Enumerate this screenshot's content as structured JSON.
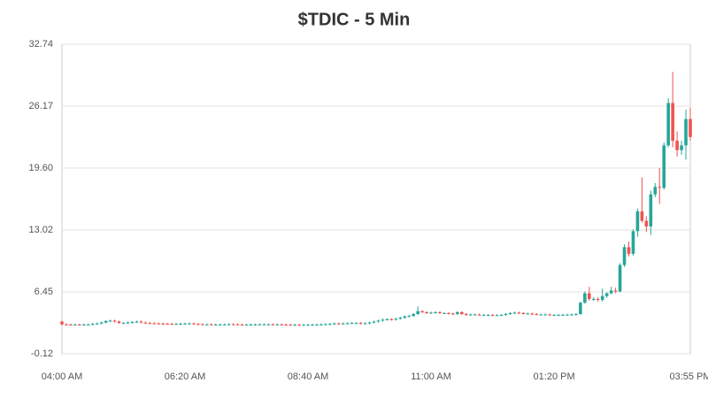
{
  "chart_data": {
    "type": "candlestick",
    "title": "$TDIC - 5 Min",
    "categories": [
      "04:00 AM",
      null,
      null,
      null,
      null,
      null,
      null,
      null,
      null,
      null,
      null,
      null,
      null,
      null,
      null,
      null,
      null,
      null,
      null,
      null,
      null,
      null,
      null,
      null,
      null,
      null,
      null,
      null,
      "06:20 AM",
      null,
      null,
      null,
      null,
      null,
      null,
      null,
      null,
      null,
      null,
      null,
      null,
      null,
      null,
      null,
      null,
      null,
      null,
      null,
      null,
      null,
      null,
      null,
      null,
      null,
      null,
      null,
      "08:40 AM",
      null,
      null,
      null,
      null,
      null,
      null,
      null,
      null,
      null,
      null,
      null,
      null,
      null,
      null,
      null,
      null,
      null,
      null,
      null,
      null,
      null,
      null,
      null,
      null,
      null,
      null,
      null,
      "11:00 AM",
      null,
      null,
      null,
      null,
      null,
      null,
      null,
      null,
      null,
      null,
      null,
      null,
      null,
      null,
      null,
      null,
      null,
      null,
      null,
      null,
      null,
      null,
      null,
      null,
      null,
      null,
      null,
      "01:20 PM",
      null,
      null,
      null,
      null,
      null,
      null,
      null,
      null,
      null,
      null,
      null,
      null,
      null,
      null,
      null,
      null,
      null,
      null,
      null,
      null,
      null,
      null,
      null,
      null,
      null,
      null,
      null,
      null,
      null,
      null,
      "03:55 PM"
    ],
    "open": [
      3.3,
      3.0,
      2.98,
      2.97,
      2.98,
      2.97,
      2.99,
      2.99,
      3.05,
      3.1,
      3.2,
      3.35,
      3.4,
      3.3,
      3.15,
      3.15,
      3.2,
      3.25,
      3.3,
      3.2,
      3.15,
      3.12,
      3.1,
      3.08,
      3.07,
      3.06,
      3.05,
      3.05,
      3.07,
      3.08,
      3.1,
      3.05,
      3.02,
      3.0,
      3.0,
      2.98,
      2.98,
      2.99,
      3.0,
      3.02,
      3.0,
      2.98,
      2.97,
      2.97,
      2.98,
      2.99,
      3.0,
      3.0,
      3.0,
      2.99,
      2.99,
      2.98,
      2.97,
      2.96,
      2.96,
      2.95,
      2.95,
      2.96,
      2.97,
      2.98,
      3.0,
      3.02,
      3.05,
      3.1,
      3.08,
      3.1,
      3.12,
      3.15,
      3.15,
      3.1,
      3.12,
      3.2,
      3.3,
      3.4,
      3.5,
      3.55,
      3.5,
      3.6,
      3.7,
      3.85,
      3.9,
      4.1,
      4.4,
      4.3,
      4.2,
      4.25,
      4.3,
      4.2,
      4.2,
      4.15,
      4.1,
      4.3,
      4.1,
      4.0,
      4.05,
      4.05,
      4.0,
      4.0,
      4.0,
      3.98,
      3.98,
      4.0,
      4.1,
      4.2,
      4.25,
      4.2,
      4.15,
      4.15,
      4.1,
      4.05,
      4.05,
      4.05,
      4.0,
      4.0,
      4.0,
      4.02,
      4.03,
      4.05,
      4.1,
      5.3,
      6.3,
      5.7,
      5.7,
      5.6,
      6.0,
      6.3,
      6.6,
      6.5,
      9.3,
      11.2,
      10.5,
      12.9,
      15.0,
      14.0,
      13.4,
      16.8,
      17.6,
      17.5,
      22.0,
      26.5,
      22.5,
      21.5,
      22.0,
      24.8
    ],
    "high": [
      3.4,
      3.1,
      3.08,
      3.08,
      3.08,
      3.09,
      3.09,
      3.15,
      3.2,
      3.3,
      3.45,
      3.5,
      3.5,
      3.4,
      3.25,
      3.3,
      3.35,
      3.4,
      3.4,
      3.3,
      3.25,
      3.22,
      3.2,
      3.18,
      3.17,
      3.16,
      3.15,
      3.17,
      3.18,
      3.2,
      3.2,
      3.15,
      3.12,
      3.1,
      3.1,
      3.08,
      3.09,
      3.1,
      3.12,
      3.12,
      3.1,
      3.08,
      3.07,
      3.08,
      3.09,
      3.1,
      3.1,
      3.1,
      3.1,
      3.09,
      3.09,
      3.08,
      3.07,
      3.06,
      3.06,
      3.05,
      3.06,
      3.07,
      3.08,
      3.1,
      3.12,
      3.15,
      3.2,
      3.2,
      3.2,
      3.22,
      3.25,
      3.25,
      3.25,
      3.22,
      3.3,
      3.4,
      3.5,
      3.6,
      3.65,
      3.65,
      3.7,
      3.8,
      3.95,
      4.0,
      4.2,
      4.9,
      4.5,
      4.4,
      4.35,
      4.4,
      4.4,
      4.3,
      4.3,
      4.25,
      4.4,
      4.4,
      4.2,
      4.15,
      4.15,
      4.15,
      4.1,
      4.1,
      4.1,
      4.08,
      4.1,
      4.2,
      4.3,
      4.35,
      4.35,
      4.3,
      4.25,
      4.25,
      4.2,
      4.15,
      4.15,
      4.15,
      4.1,
      4.1,
      4.12,
      4.13,
      4.15,
      4.2,
      5.4,
      6.5,
      7.0,
      5.9,
      5.9,
      6.8,
      6.4,
      7.0,
      6.9,
      9.5,
      11.5,
      11.8,
      13.1,
      15.3,
      18.6,
      14.5,
      17.2,
      18.0,
      19.6,
      22.3,
      27.0,
      29.8,
      23.5,
      22.5,
      25.8,
      26.0
    ],
    "low": [
      2.9,
      2.88,
      2.87,
      2.87,
      2.87,
      2.87,
      2.89,
      2.89,
      2.95,
      3.0,
      3.1,
      3.25,
      3.2,
      3.05,
      3.05,
      3.05,
      3.1,
      3.15,
      3.1,
      3.05,
      3.02,
      3.0,
      2.98,
      2.97,
      2.96,
      2.95,
      2.95,
      2.95,
      2.97,
      2.98,
      2.95,
      2.92,
      2.9,
      2.9,
      2.88,
      2.88,
      2.88,
      2.89,
      2.9,
      2.9,
      2.88,
      2.87,
      2.87,
      2.87,
      2.88,
      2.89,
      2.9,
      2.9,
      2.89,
      2.89,
      2.88,
      2.87,
      2.86,
      2.86,
      2.85,
      2.85,
      2.85,
      2.86,
      2.87,
      2.88,
      2.9,
      2.92,
      2.95,
      2.98,
      2.98,
      3.0,
      3.02,
      3.05,
      3.0,
      3.0,
      3.02,
      3.1,
      3.2,
      3.3,
      3.4,
      3.4,
      3.4,
      3.5,
      3.6,
      3.75,
      3.8,
      4.0,
      4.2,
      4.1,
      4.1,
      4.15,
      4.1,
      4.1,
      4.05,
      4.0,
      4.0,
      4.0,
      3.9,
      3.9,
      3.95,
      3.9,
      3.9,
      3.9,
      3.88,
      3.88,
      3.88,
      3.9,
      4.0,
      4.1,
      4.1,
      4.05,
      4.05,
      4.0,
      3.95,
      3.95,
      3.95,
      3.9,
      3.9,
      3.9,
      3.9,
      3.92,
      3.93,
      3.95,
      4.0,
      5.2,
      5.5,
      5.5,
      5.4,
      5.4,
      5.8,
      6.2,
      6.3,
      6.4,
      9.1,
      10.2,
      10.3,
      12.3,
      13.8,
      12.8,
      12.5,
      16.5,
      15.8,
      17.3,
      21.8,
      21.8,
      20.8,
      21.0,
      20.5,
      22.5
    ],
    "close": [
      3.0,
      2.98,
      2.97,
      2.98,
      2.97,
      2.99,
      2.99,
      3.05,
      3.1,
      3.2,
      3.35,
      3.4,
      3.3,
      3.15,
      3.15,
      3.2,
      3.25,
      3.3,
      3.2,
      3.15,
      3.12,
      3.1,
      3.08,
      3.07,
      3.06,
      3.05,
      3.05,
      3.07,
      3.08,
      3.1,
      3.05,
      3.02,
      3.0,
      3.0,
      2.98,
      2.98,
      2.99,
      3.0,
      3.02,
      3.0,
      2.98,
      2.97,
      2.97,
      2.98,
      2.99,
      3.0,
      3.0,
      3.0,
      2.99,
      2.99,
      2.98,
      2.97,
      2.96,
      2.96,
      2.95,
      2.95,
      2.96,
      2.97,
      2.98,
      3.0,
      3.02,
      3.05,
      3.1,
      3.08,
      3.1,
      3.12,
      3.15,
      3.15,
      3.1,
      3.12,
      3.2,
      3.3,
      3.4,
      3.5,
      3.55,
      3.5,
      3.6,
      3.7,
      3.85,
      3.9,
      4.1,
      4.4,
      4.3,
      4.2,
      4.25,
      4.3,
      4.2,
      4.2,
      4.15,
      4.1,
      4.3,
      4.1,
      4.0,
      4.05,
      4.05,
      4.0,
      4.0,
      4.0,
      3.98,
      3.98,
      4.0,
      4.1,
      4.2,
      4.25,
      4.2,
      4.15,
      4.15,
      4.1,
      4.05,
      4.05,
      4.05,
      4.0,
      4.0,
      4.0,
      4.02,
      4.03,
      4.05,
      4.1,
      5.3,
      6.3,
      5.7,
      5.7,
      5.6,
      6.0,
      6.3,
      6.6,
      6.5,
      9.3,
      11.2,
      10.5,
      12.9,
      15.0,
      14.0,
      13.4,
      16.8,
      17.6,
      17.5,
      22.0,
      26.5,
      22.5,
      21.5,
      22.0,
      24.8,
      22.9
    ],
    "up_color": "#26a69a",
    "down_color": "#ef5350",
    "ylim": [
      -0.12,
      32.74
    ],
    "yticks": [
      -0.12,
      6.45,
      13.02,
      {
        "value": 19.6,
        "label": "19.60"
      },
      26.17,
      32.74
    ],
    "grid": true
  }
}
